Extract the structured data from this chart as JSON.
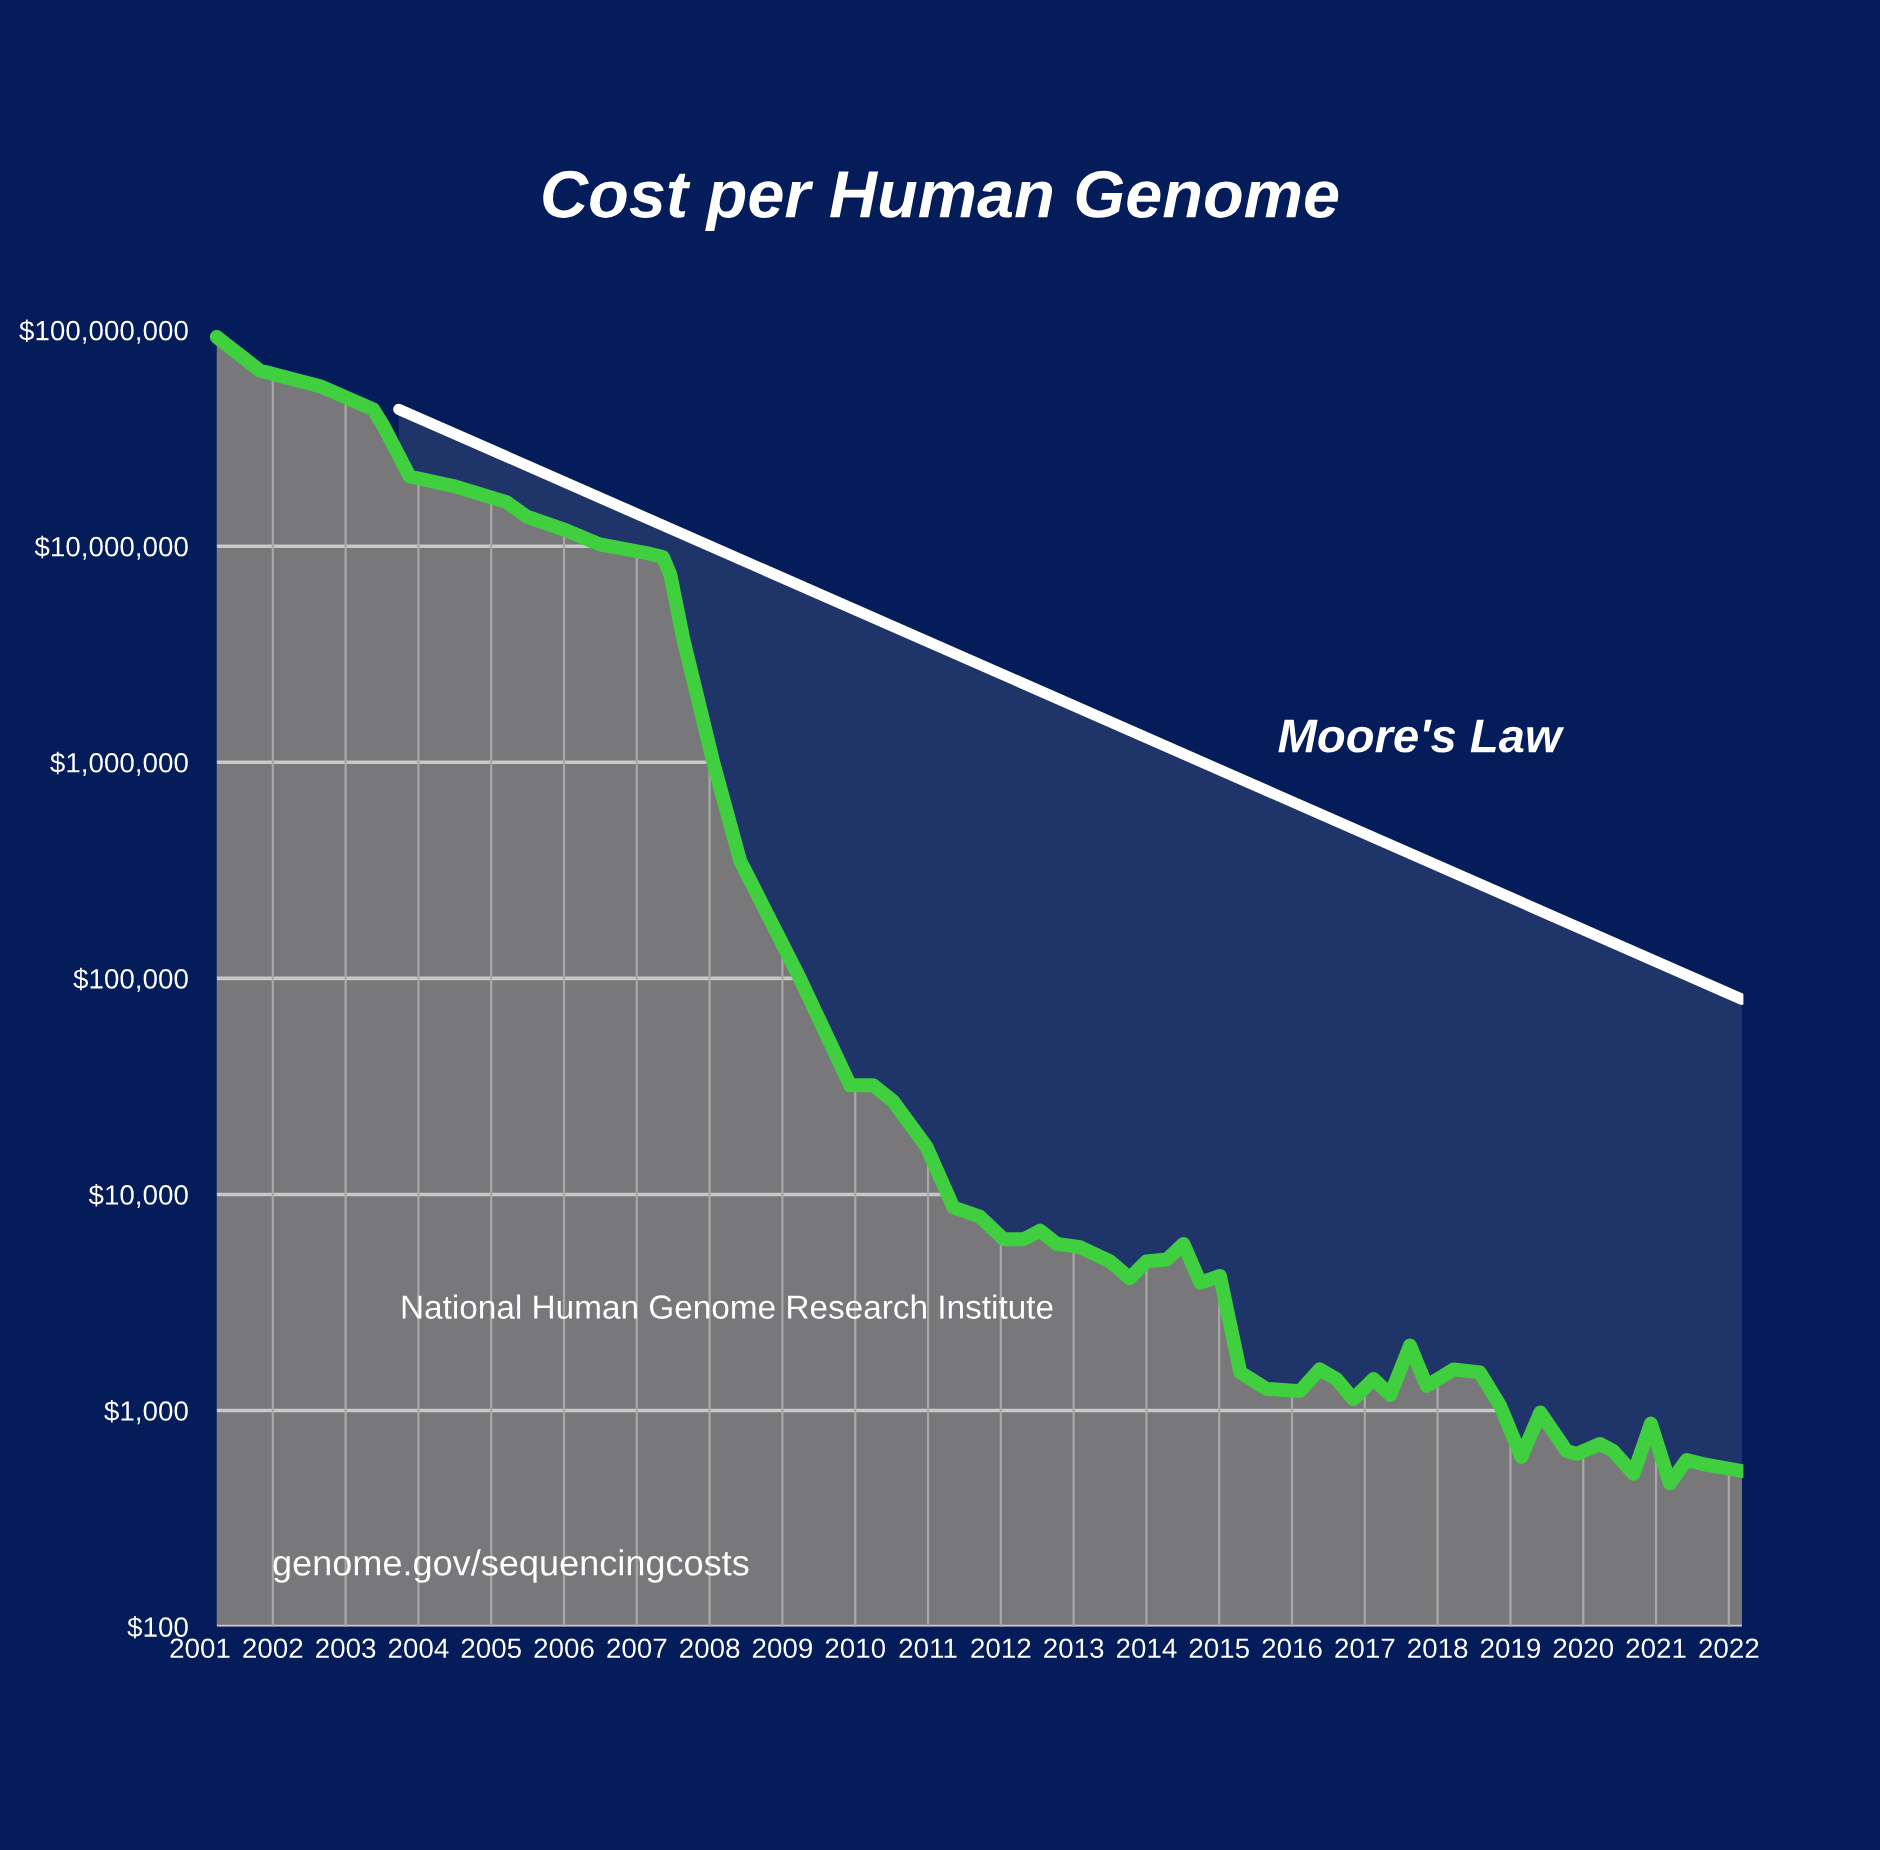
{
  "chart_data": {
    "type": "area",
    "title": "Cost per Human Genome",
    "x": [
      2001.23,
      2001.82,
      2002.65,
      2003.38,
      2003.52,
      2003.88,
      2004.48,
      2005.21,
      2005.49,
      2006.04,
      2006.49,
      2007.13,
      2007.36,
      2007.46,
      2007.64,
      2008.05,
      2008.42,
      2009.24,
      2009.93,
      2010.25,
      2010.52,
      2010.98,
      2011.35,
      2011.71,
      2012.04,
      2012.31,
      2012.54,
      2012.77,
      2013.09,
      2013.5,
      2013.77,
      2014.0,
      2014.28,
      2014.51,
      2014.74,
      2015.01,
      2015.29,
      2015.65,
      2016.11,
      2016.38,
      2016.61,
      2016.84,
      2017.12,
      2017.35,
      2017.62,
      2017.85,
      2018.22,
      2018.58,
      2018.86,
      2019.15,
      2019.41,
      2019.77,
      2019.91,
      2020.23,
      2020.41,
      2020.69,
      2020.93,
      2021.19,
      2021.42,
      2021.7,
      2022.18
    ],
    "series": [
      {
        "color": "#3fcf3f",
        "values": [
          93000000,
          65000000,
          55000000,
          43000000,
          36000000,
          21000000,
          19000000,
          16000000,
          13700000,
          11800000,
          10200000,
          9300000,
          8900000,
          7400000,
          3700000,
          1000000,
          350000,
          100000,
          32000,
          32000,
          27000,
          16600,
          8700,
          7900,
          6200,
          6200,
          6800,
          5900,
          5700,
          4900,
          4100,
          4900,
          5000,
          5900,
          3900,
          4200,
          1500,
          1260,
          1230,
          1550,
          1400,
          1130,
          1400,
          1180,
          2000,
          1300,
          1550,
          1500,
          1050,
          610,
          980,
          650,
          630,
          700,
          650,
          510,
          870,
          460,
          590,
          560,
          525
        ]
      },
      {
        "name": "Moore's Law",
        "color": "#ffffff",
        "x": [
          2003.73,
          2022.18
        ],
        "values": [
          43000000,
          80000
        ]
      }
    ],
    "log": true,
    "xlim": [
      2001,
      2022.2
    ],
    "ylim": [
      100,
      300000000
    ],
    "xticks": [
      2001,
      2002,
      2003,
      2004,
      2005,
      2006,
      2007,
      2008,
      2009,
      2010,
      2011,
      2012,
      2013,
      2014,
      2015,
      2016,
      2017,
      2018,
      2019,
      2020,
      2021,
      2022
    ],
    "yticks": [
      {
        "value": 100,
        "label": "$100"
      },
      {
        "value": 1000,
        "label": "$1,000"
      },
      {
        "value": 10000,
        "label": "$10,000"
      },
      {
        "value": 100000,
        "label": "$100,000"
      },
      {
        "value": 1000000,
        "label": "$1,000,000"
      },
      {
        "value": 10000000,
        "label": "$10,000,000"
      },
      {
        "value": 100000000,
        "label": "$100,000,000"
      }
    ],
    "grid": true,
    "marker": "none",
    "line_style": "solid",
    "annotations": [
      "National Human Genome Research Institute",
      "genome.gov/sequencingcosts"
    ]
  }
}
